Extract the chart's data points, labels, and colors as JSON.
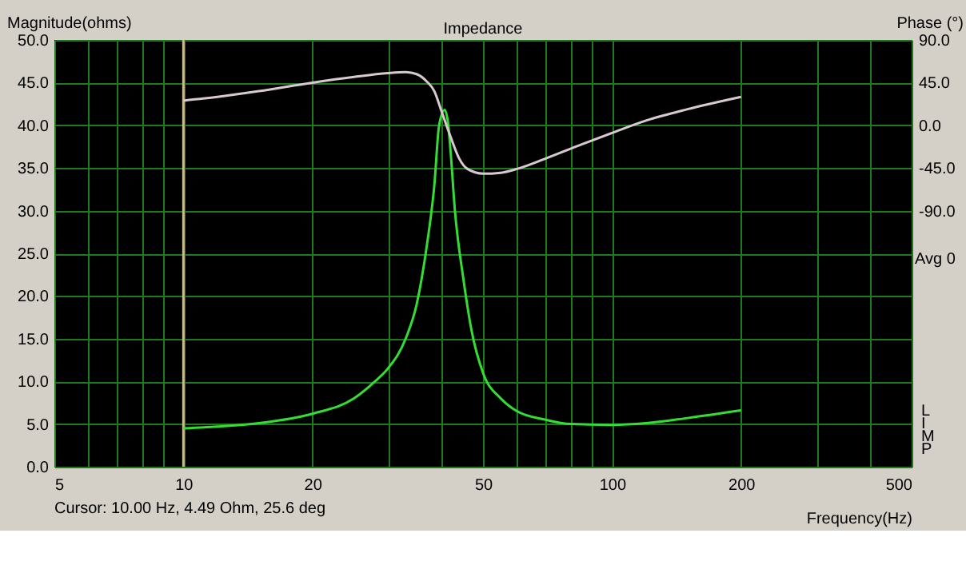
{
  "chart_data": {
    "type": "line",
    "title": "Impedance",
    "xlabel": "Frequency(Hz)",
    "ylabel": "Magnitude(ohms)",
    "y2label": "Phase (°)",
    "annotations": [
      "Cursor: 10.00 Hz, 4.49 Ohm, 25.6 deg",
      "Avg 0",
      "LIMP"
    ],
    "log": "x",
    "grid": true,
    "marker": "none",
    "line_style": "solid",
    "xlim": [
      5,
      500
    ],
    "xticks": [
      5,
      {
        "value": 6,
        "label": null
      },
      {
        "value": 7,
        "label": null
      },
      {
        "value": 8,
        "label": null
      },
      {
        "value": 9,
        "label": null
      },
      10,
      20,
      {
        "value": 30,
        "label": null
      },
      {
        "value": 40,
        "label": null
      },
      50,
      {
        "value": 60,
        "label": null
      },
      {
        "value": 70,
        "label": null
      },
      {
        "value": 80,
        "label": null
      },
      {
        "value": 90,
        "label": null
      },
      100,
      200,
      {
        "value": 300,
        "label": null
      },
      {
        "value": 400,
        "label": null
      },
      500
    ],
    "ylim": [
      0,
      50
    ],
    "yticks": [
      {
        "value": 0,
        "label": "0.0"
      },
      {
        "value": 5,
        "label": "5.0"
      },
      {
        "value": 10,
        "label": "10.0"
      },
      {
        "value": 15,
        "label": "15.0"
      },
      {
        "value": 20,
        "label": "20.0"
      },
      {
        "value": 25,
        "label": "25.0"
      },
      {
        "value": 30,
        "label": "30.0"
      },
      {
        "value": 35,
        "label": "35.0"
      },
      {
        "value": 40,
        "label": "40.0"
      },
      {
        "value": 45,
        "label": "45.0"
      },
      {
        "value": 50,
        "label": "50.0"
      }
    ],
    "y2lim": [
      -360,
      90
    ],
    "y2ticks": [
      {
        "value": 90,
        "label": "90.0"
      },
      {
        "value": 45,
        "label": "45.0"
      },
      {
        "value": 0,
        "label": "0.0"
      },
      {
        "value": -45,
        "label": "-45.0"
      },
      {
        "value": -90,
        "label": "-90.0"
      }
    ],
    "ref_lines": [
      {
        "axis": "x",
        "value": 10,
        "color": "#c8b88a"
      }
    ],
    "series": [
      {
        "color": "#33dd33",
        "x": [
          10,
          12,
          15,
          20,
          25,
          28,
          30,
          33,
          35,
          37,
          38.5,
          39.5,
          40.7,
          41.5,
          42,
          43,
          45,
          47,
          50,
          55,
          60,
          70,
          80,
          100,
          120,
          150,
          200
        ],
        "values": [
          4.5,
          4.7,
          5.1,
          6.2,
          8.0,
          10.0,
          11.5,
          15,
          19,
          26,
          33,
          40,
          41.8,
          40,
          37,
          30,
          22,
          16,
          11,
          8,
          6.5,
          5.5,
          5.0,
          4.9,
          5.1,
          5.7,
          6.6
        ]
      },
      {
        "axis": "y2",
        "color": "#d8c8d0",
        "x": [
          10,
          12,
          15,
          20,
          25,
          30,
          33,
          35,
          37,
          38.5,
          40,
          42,
          44,
          46,
          50,
          55,
          60,
          70,
          85,
          100,
          120,
          150,
          200
        ],
        "values": [
          26,
          30,
          36,
          45,
          51,
          55,
          56,
          54,
          46,
          36,
          15,
          -12,
          -35,
          -46,
          -51,
          -50,
          -46,
          -35,
          -20,
          -8,
          5,
          17,
          30
        ]
      }
    ]
  }
}
